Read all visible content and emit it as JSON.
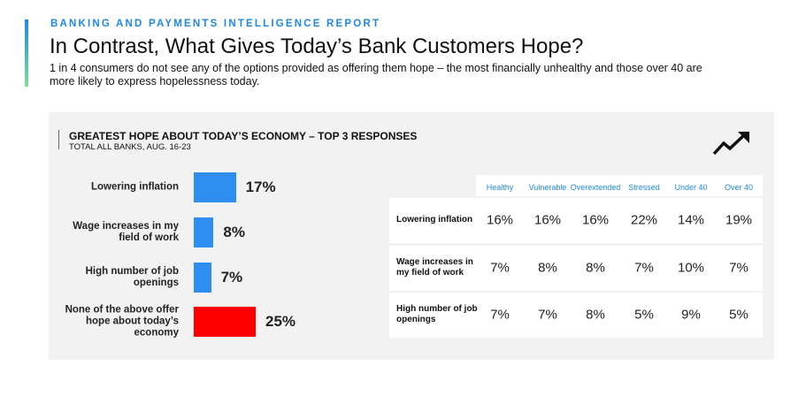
{
  "header": {
    "kicker": "BANKING AND PAYMENTS INTELLIGENCE REPORT",
    "title": "In Contrast, What Gives Today’s Bank Customers Hope?",
    "subtitle": "1 in 4 consumers do not see any of the options provided as offering them hope – the most financially unhealthy and those over 40 are more likely to express hopelessness today."
  },
  "chart_data": {
    "type": "bar",
    "orientation": "horizontal",
    "title": "GREATEST HOPE ABOUT TODAY’S ECONOMY – TOP 3 RESPONSES",
    "subtitle": "TOTAL ALL BANKS, AUG. 16-23",
    "categories": [
      "Lowering inflation",
      "Wage increases in my field of work",
      "High number of job openings",
      "None of the above offer hope about today’s economy"
    ],
    "values": [
      17,
      8,
      7,
      25
    ],
    "value_labels": [
      "17%",
      "8%",
      "7%",
      "25%"
    ],
    "colors": [
      "#2e8ef0",
      "#2e8ef0",
      "#2e8ef0",
      "#ff0000"
    ]
  },
  "table": {
    "columns": [
      "Healthy",
      "Vulnerable",
      "Overextended",
      "Stressed",
      "Under 40",
      "Over 40"
    ],
    "rows": [
      {
        "label": "Lowering inflation",
        "values": [
          "16%",
          "16%",
          "16%",
          "22%",
          "14%",
          "19%"
        ]
      },
      {
        "label": "Wage increases in my field of work",
        "values": [
          "7%",
          "8%",
          "8%",
          "7%",
          "10%",
          "7%"
        ]
      },
      {
        "label": "High number of job openings",
        "values": [
          "7%",
          "7%",
          "8%",
          "5%",
          "9%",
          "5%"
        ]
      }
    ]
  }
}
